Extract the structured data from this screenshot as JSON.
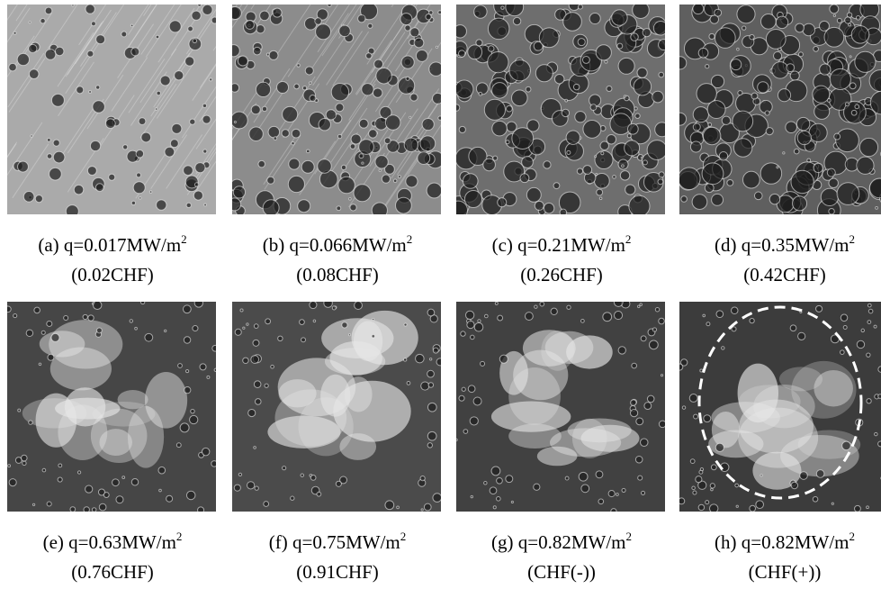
{
  "panels": [
    {
      "caption": "(a) q=0.017MW/m",
      "sup": "2",
      "note": "(0.02CHF)"
    },
    {
      "caption": "(b) q=0.066MW/m",
      "sup": "2",
      "note": "(0.08CHF)"
    },
    {
      "caption": "(c) q=0.21MW/m",
      "sup": "2",
      "note": "(0.26CHF)"
    },
    {
      "caption": "(d) q=0.35MW/m",
      "sup": "2",
      "note": "(0.42CHF)"
    },
    {
      "caption": "(e) q=0.63MW/m",
      "sup": "2",
      "note": "(0.76CHF)"
    },
    {
      "caption": "(f) q=0.75MW/m",
      "sup": "2",
      "note": "(0.91CHF)"
    },
    {
      "caption": "(g) q=0.82MW/m",
      "sup": "2",
      "note": "(CHF(-))"
    },
    {
      "caption": "(h) q=0.82MW/m",
      "sup": "2",
      "note": "(CHF(+))"
    }
  ]
}
